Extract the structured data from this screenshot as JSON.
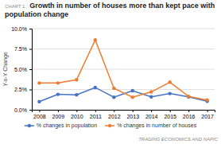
{
  "chart_data": {
    "type": "line",
    "title": "Growth in number of houses more than kept pace with population change",
    "annotations": [
      "CHART 1.",
      "TRADING ECONOMICS AND NAPIC"
    ],
    "ylabel": "Y-o-Y Change",
    "x": [
      2008,
      2009,
      2010,
      2011,
      2012,
      2013,
      2014,
      2015,
      2016,
      2017
    ],
    "series": [
      {
        "name": "% changes in population",
        "color": "#4472c4",
        "marker": "circle",
        "values": [
          1.0,
          1.9,
          1.85,
          2.75,
          1.55,
          2.35,
          1.6,
          2.0,
          1.6,
          1.05
        ]
      },
      {
        "name": "% changes in number of houses",
        "color": "#ed7d31",
        "marker": "circle",
        "values": [
          3.3,
          3.3,
          3.7,
          8.6,
          2.65,
          1.55,
          2.2,
          3.4,
          1.65,
          1.2
        ]
      }
    ],
    "xlim": [
      2007.6,
      2017.4
    ],
    "xticks": [
      2008,
      2009,
      2010,
      2011,
      2012,
      2013,
      2014,
      2015,
      2016,
      2017
    ],
    "ylim": [
      0.0,
      10.0
    ],
    "yticks": [
      {
        "value": 0.0,
        "label": "0.0%"
      },
      {
        "value": 2.5,
        "label": "2.5%"
      },
      {
        "value": 5.0,
        "label": "5.0%"
      },
      {
        "value": 7.5,
        "label": "7.5%"
      },
      {
        "value": 10.0,
        "label": "10.0%"
      }
    ],
    "grid": true,
    "legend": "bottom"
  }
}
